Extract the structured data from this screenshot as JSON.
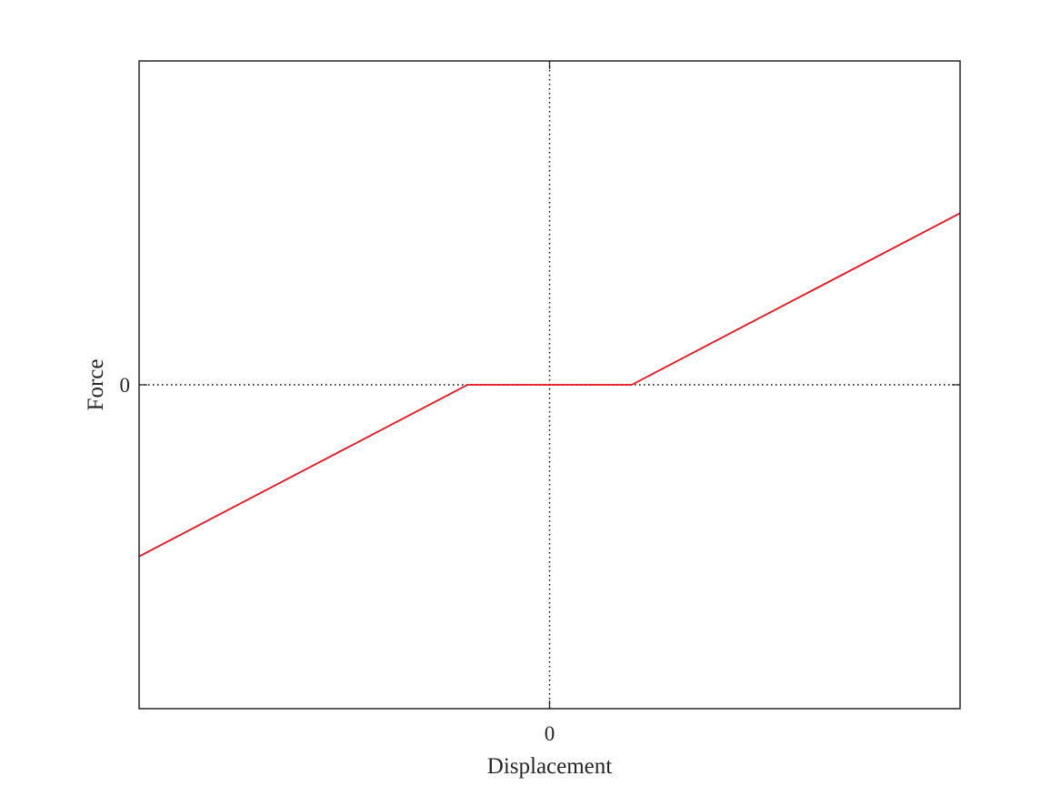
{
  "chart_data": {
    "type": "line",
    "title": "",
    "xlabel": "Displacement",
    "ylabel": "Force",
    "x_ticks": [
      {
        "value": 0,
        "label": "0"
      }
    ],
    "y_ticks": [
      {
        "value": 0,
        "label": "0"
      }
    ],
    "xlim": [
      -1,
      1
    ],
    "ylim": [
      -1,
      1
    ],
    "grid": false,
    "reference_lines": [
      {
        "axis": "x",
        "value": 0,
        "style": "dotted",
        "color": "#000000"
      },
      {
        "axis": "y",
        "value": 0,
        "style": "dotted",
        "color": "#000000"
      }
    ],
    "series": [
      {
        "color": "#e8121b",
        "x": [
          -1,
          -0.2,
          0.2,
          1
        ],
        "y": [
          -0.53,
          0,
          0,
          0.53
        ]
      }
    ]
  }
}
